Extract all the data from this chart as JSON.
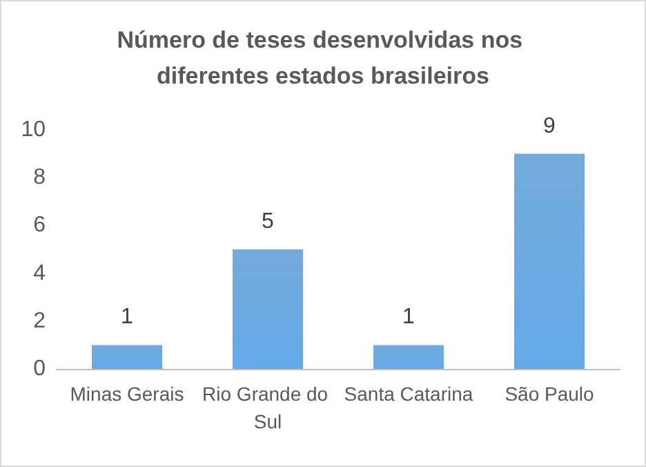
{
  "chart_data": {
    "type": "bar",
    "title": "Número de teses desenvolvidas nos diferentes estados brasileiros",
    "categories": [
      "Minas Gerais",
      "Rio Grande do Sul",
      "Santa Catarina",
      "São Paulo"
    ],
    "values": [
      1,
      5,
      1,
      9
    ],
    "color": "#5b9bd5",
    "ylim": [
      0,
      10
    ],
    "yticks": [
      0,
      2,
      4,
      6,
      8,
      10
    ],
    "grid": false,
    "data_labels": true
  }
}
